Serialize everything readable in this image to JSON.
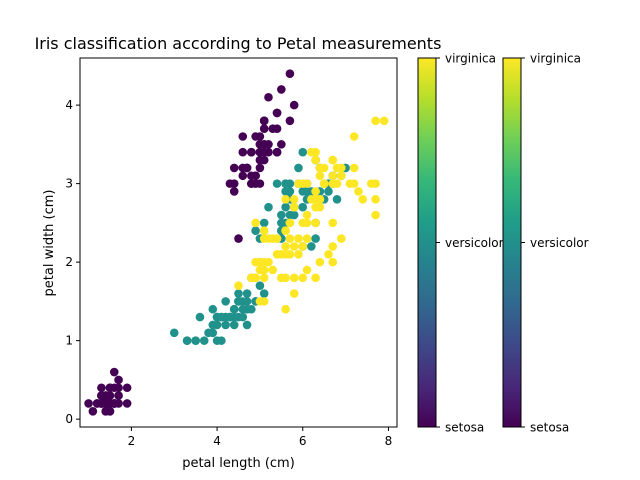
{
  "chart_data": {
    "type": "scatter",
    "title": "Iris classification according to Petal measurements",
    "xlabel": "petal length (cm)",
    "ylabel": "petal width (cm)",
    "xlim": [
      0.8,
      8.2
    ],
    "ylim": [
      -0.1,
      4.6
    ],
    "xticks": [
      2,
      4,
      6,
      8
    ],
    "yticks": [
      0,
      1,
      2,
      3,
      4
    ],
    "grid": false,
    "colormap": "viridis",
    "colorbar": {
      "labels": [
        "setosa",
        "versicolor",
        "virginica"
      ],
      "count": 2,
      "stops": [
        "#440154",
        "#482878",
        "#3e4989",
        "#31688e",
        "#26828e",
        "#1f9e89",
        "#35b779",
        "#6ece58",
        "#b5de2b",
        "#fde725"
      ]
    },
    "class_colors": {
      "setosa": "#440154",
      "versicolor": "#21918c",
      "virginica": "#fde725"
    },
    "series": [
      {
        "class": "setosa",
        "points": [
          [
            1.4,
            0.2
          ],
          [
            1.4,
            0.2
          ],
          [
            1.3,
            0.2
          ],
          [
            1.5,
            0.2
          ],
          [
            1.4,
            0.2
          ],
          [
            1.7,
            0.4
          ],
          [
            1.4,
            0.3
          ],
          [
            1.5,
            0.2
          ],
          [
            1.4,
            0.2
          ],
          [
            1.5,
            0.1
          ],
          [
            1.5,
            0.2
          ],
          [
            1.6,
            0.2
          ],
          [
            1.4,
            0.1
          ],
          [
            1.1,
            0.1
          ],
          [
            1.2,
            0.2
          ],
          [
            1.5,
            0.4
          ],
          [
            1.3,
            0.4
          ],
          [
            1.4,
            0.3
          ],
          [
            1.7,
            0.3
          ],
          [
            1.5,
            0.3
          ],
          [
            1.7,
            0.2
          ],
          [
            1.5,
            0.4
          ],
          [
            1.0,
            0.2
          ],
          [
            1.7,
            0.5
          ],
          [
            1.9,
            0.2
          ],
          [
            1.6,
            0.2
          ],
          [
            1.6,
            0.4
          ],
          [
            1.5,
            0.2
          ],
          [
            1.4,
            0.2
          ],
          [
            1.6,
            0.2
          ],
          [
            1.6,
            0.2
          ],
          [
            1.5,
            0.4
          ],
          [
            1.5,
            0.1
          ],
          [
            1.4,
            0.2
          ],
          [
            1.5,
            0.2
          ],
          [
            1.2,
            0.2
          ],
          [
            1.3,
            0.2
          ],
          [
            1.4,
            0.1
          ],
          [
            1.3,
            0.2
          ],
          [
            1.5,
            0.2
          ],
          [
            1.3,
            0.3
          ],
          [
            1.3,
            0.3
          ],
          [
            1.3,
            0.2
          ],
          [
            1.6,
            0.6
          ],
          [
            1.9,
            0.4
          ],
          [
            1.4,
            0.3
          ],
          [
            1.6,
            0.2
          ],
          [
            1.4,
            0.2
          ],
          [
            1.5,
            0.2
          ],
          [
            1.4,
            0.2
          ],
          [
            5.1,
            3.5
          ],
          [
            4.9,
            3.0
          ],
          [
            4.7,
            3.2
          ],
          [
            4.6,
            3.1
          ],
          [
            5.0,
            3.6
          ],
          [
            5.4,
            3.9
          ],
          [
            4.6,
            3.4
          ],
          [
            5.0,
            3.4
          ],
          [
            4.4,
            2.9
          ],
          [
            4.9,
            3.1
          ],
          [
            5.4,
            3.7
          ],
          [
            4.8,
            3.4
          ],
          [
            4.8,
            3.0
          ],
          [
            4.3,
            3.0
          ],
          [
            5.8,
            4.0
          ],
          [
            5.7,
            4.4
          ],
          [
            5.4,
            3.9
          ],
          [
            5.1,
            3.5
          ],
          [
            5.7,
            3.8
          ],
          [
            5.1,
            3.8
          ],
          [
            5.4,
            3.4
          ],
          [
            5.1,
            3.7
          ],
          [
            4.6,
            3.6
          ],
          [
            5.1,
            3.3
          ],
          [
            4.8,
            3.4
          ],
          [
            5.0,
            3.0
          ],
          [
            5.0,
            3.4
          ],
          [
            5.2,
            3.5
          ],
          [
            5.2,
            3.4
          ],
          [
            4.7,
            3.2
          ],
          [
            4.8,
            3.1
          ],
          [
            5.4,
            3.4
          ],
          [
            5.2,
            4.1
          ],
          [
            5.5,
            4.2
          ],
          [
            4.9,
            3.1
          ],
          [
            5.0,
            3.2
          ],
          [
            5.5,
            3.5
          ],
          [
            4.9,
            3.6
          ],
          [
            4.4,
            3.0
          ],
          [
            5.1,
            3.4
          ],
          [
            5.0,
            3.5
          ],
          [
            4.5,
            2.3
          ],
          [
            4.4,
            3.2
          ],
          [
            5.0,
            3.5
          ],
          [
            5.1,
            3.8
          ],
          [
            4.8,
            3.0
          ],
          [
            5.1,
            3.8
          ],
          [
            4.6,
            3.2
          ],
          [
            5.3,
            3.7
          ],
          [
            5.0,
            3.3
          ]
        ]
      },
      {
        "class": "versicolor",
        "points": [
          [
            4.7,
            1.4
          ],
          [
            4.5,
            1.5
          ],
          [
            4.9,
            1.5
          ],
          [
            4.0,
            1.3
          ],
          [
            4.6,
            1.5
          ],
          [
            4.5,
            1.3
          ],
          [
            4.7,
            1.6
          ],
          [
            3.3,
            1.0
          ],
          [
            4.6,
            1.3
          ],
          [
            3.9,
            1.4
          ],
          [
            3.5,
            1.0
          ],
          [
            4.2,
            1.5
          ],
          [
            4.0,
            1.0
          ],
          [
            4.7,
            1.4
          ],
          [
            3.6,
            1.3
          ],
          [
            4.4,
            1.4
          ],
          [
            4.5,
            1.5
          ],
          [
            4.1,
            1.0
          ],
          [
            4.5,
            1.5
          ],
          [
            3.9,
            1.1
          ],
          [
            4.8,
            1.8
          ],
          [
            4.0,
            1.3
          ],
          [
            4.9,
            1.5
          ],
          [
            4.7,
            1.2
          ],
          [
            4.3,
            1.3
          ],
          [
            4.4,
            1.4
          ],
          [
            4.8,
            1.4
          ],
          [
            5.0,
            1.7
          ],
          [
            4.5,
            1.5
          ],
          [
            3.5,
            1.0
          ],
          [
            3.8,
            1.1
          ],
          [
            3.7,
            1.0
          ],
          [
            3.9,
            1.2
          ],
          [
            5.1,
            1.6
          ],
          [
            4.5,
            1.5
          ],
          [
            4.5,
            1.6
          ],
          [
            4.7,
            1.5
          ],
          [
            4.4,
            1.3
          ],
          [
            4.1,
            1.3
          ],
          [
            4.0,
            1.3
          ],
          [
            4.4,
            1.2
          ],
          [
            4.6,
            1.4
          ],
          [
            4.0,
            1.2
          ],
          [
            3.3,
            1.0
          ],
          [
            4.2,
            1.3
          ],
          [
            4.2,
            1.2
          ],
          [
            4.2,
            1.3
          ],
          [
            4.3,
            1.3
          ],
          [
            3.0,
            1.1
          ],
          [
            4.1,
            1.3
          ],
          [
            7.0,
            3.2
          ],
          [
            6.4,
            3.2
          ],
          [
            6.9,
            3.1
          ],
          [
            5.5,
            2.3
          ],
          [
            6.5,
            2.8
          ],
          [
            5.7,
            2.8
          ],
          [
            6.3,
            3.3
          ],
          [
            4.9,
            2.4
          ],
          [
            6.6,
            2.9
          ],
          [
            5.2,
            2.7
          ],
          [
            5.0,
            2.0
          ],
          [
            5.9,
            3.0
          ],
          [
            6.0,
            2.2
          ],
          [
            6.1,
            2.9
          ],
          [
            5.6,
            2.9
          ],
          [
            6.7,
            3.1
          ],
          [
            5.6,
            3.0
          ],
          [
            5.8,
            2.7
          ],
          [
            6.2,
            2.2
          ],
          [
            5.6,
            2.5
          ],
          [
            5.9,
            3.2
          ],
          [
            6.1,
            2.8
          ],
          [
            6.3,
            2.5
          ],
          [
            6.1,
            2.8
          ],
          [
            6.4,
            2.9
          ],
          [
            6.6,
            3.0
          ],
          [
            6.8,
            2.8
          ],
          [
            6.7,
            3.0
          ],
          [
            6.0,
            2.9
          ],
          [
            5.7,
            2.6
          ],
          [
            5.5,
            2.4
          ],
          [
            5.5,
            2.4
          ],
          [
            5.8,
            2.7
          ],
          [
            6.0,
            2.7
          ],
          [
            5.4,
            3.0
          ],
          [
            6.0,
            3.4
          ],
          [
            6.7,
            3.1
          ],
          [
            6.3,
            2.3
          ],
          [
            5.6,
            3.0
          ],
          [
            5.5,
            2.5
          ],
          [
            5.5,
            2.6
          ],
          [
            6.1,
            3.0
          ],
          [
            5.8,
            2.6
          ],
          [
            5.0,
            2.3
          ],
          [
            5.6,
            2.7
          ],
          [
            5.7,
            3.0
          ],
          [
            5.7,
            2.9
          ],
          [
            6.2,
            2.9
          ],
          [
            5.1,
            2.5
          ],
          [
            5.7,
            2.8
          ]
        ]
      },
      {
        "class": "virginica",
        "points": [
          [
            6.0,
            2.5
          ],
          [
            5.1,
            1.9
          ],
          [
            5.9,
            2.1
          ],
          [
            5.6,
            1.8
          ],
          [
            5.8,
            2.2
          ],
          [
            6.6,
            2.1
          ],
          [
            4.5,
            1.7
          ],
          [
            6.3,
            1.8
          ],
          [
            5.8,
            1.8
          ],
          [
            6.1,
            2.5
          ],
          [
            5.1,
            2.0
          ],
          [
            5.3,
            1.9
          ],
          [
            5.5,
            2.1
          ],
          [
            5.0,
            2.0
          ],
          [
            5.1,
            2.4
          ],
          [
            5.3,
            2.3
          ],
          [
            5.5,
            1.8
          ],
          [
            6.7,
            2.2
          ],
          [
            6.9,
            2.3
          ],
          [
            5.0,
            1.5
          ],
          [
            5.7,
            2.3
          ],
          [
            4.9,
            2.0
          ],
          [
            6.7,
            2.0
          ],
          [
            4.9,
            1.8
          ],
          [
            5.7,
            2.1
          ],
          [
            6.0,
            1.8
          ],
          [
            4.8,
            1.8
          ],
          [
            4.9,
            1.8
          ],
          [
            5.6,
            2.1
          ],
          [
            5.8,
            1.6
          ],
          [
            6.1,
            1.9
          ],
          [
            6.4,
            2.0
          ],
          [
            5.6,
            2.2
          ],
          [
            5.1,
            1.5
          ],
          [
            5.6,
            1.4
          ],
          [
            6.1,
            2.3
          ],
          [
            5.6,
            2.4
          ],
          [
            5.5,
            1.8
          ],
          [
            4.8,
            1.8
          ],
          [
            5.4,
            2.1
          ],
          [
            5.6,
            2.4
          ],
          [
            5.1,
            2.3
          ],
          [
            5.1,
            1.9
          ],
          [
            5.9,
            2.3
          ],
          [
            5.7,
            2.5
          ],
          [
            5.2,
            2.3
          ],
          [
            5.0,
            1.9
          ],
          [
            5.2,
            2.0
          ],
          [
            5.4,
            2.3
          ],
          [
            5.1,
            1.8
          ],
          [
            6.3,
            3.3
          ],
          [
            5.8,
            2.7
          ],
          [
            7.1,
            3.0
          ],
          [
            6.3,
            2.9
          ],
          [
            6.5,
            3.0
          ],
          [
            7.6,
            3.0
          ],
          [
            4.9,
            2.5
          ],
          [
            7.3,
            2.9
          ],
          [
            6.7,
            2.5
          ],
          [
            7.2,
            3.6
          ],
          [
            6.5,
            3.2
          ],
          [
            6.4,
            2.7
          ],
          [
            6.8,
            3.0
          ],
          [
            5.7,
            2.5
          ],
          [
            5.8,
            2.8
          ],
          [
            6.4,
            3.2
          ],
          [
            6.5,
            3.0
          ],
          [
            7.7,
            3.8
          ],
          [
            7.7,
            2.6
          ],
          [
            6.0,
            2.2
          ],
          [
            6.9,
            3.2
          ],
          [
            5.6,
            2.8
          ],
          [
            7.7,
            2.8
          ],
          [
            6.3,
            2.7
          ],
          [
            6.7,
            3.3
          ],
          [
            7.2,
            3.2
          ],
          [
            6.2,
            2.8
          ],
          [
            6.1,
            3.0
          ],
          [
            6.4,
            2.8
          ],
          [
            7.2,
            3.0
          ],
          [
            7.4,
            2.8
          ],
          [
            7.9,
            3.8
          ],
          [
            6.4,
            2.8
          ],
          [
            6.3,
            2.8
          ],
          [
            6.1,
            2.6
          ],
          [
            7.7,
            3.0
          ],
          [
            6.3,
            3.4
          ],
          [
            6.4,
            3.1
          ],
          [
            6.0,
            3.0
          ],
          [
            6.9,
            3.1
          ],
          [
            6.7,
            3.1
          ],
          [
            6.9,
            3.1
          ],
          [
            5.8,
            2.7
          ],
          [
            6.8,
            3.2
          ],
          [
            6.7,
            3.3
          ],
          [
            6.7,
            3.0
          ],
          [
            6.3,
            2.5
          ],
          [
            6.5,
            3.0
          ],
          [
            6.2,
            3.4
          ],
          [
            5.9,
            3.0
          ]
        ]
      }
    ]
  }
}
